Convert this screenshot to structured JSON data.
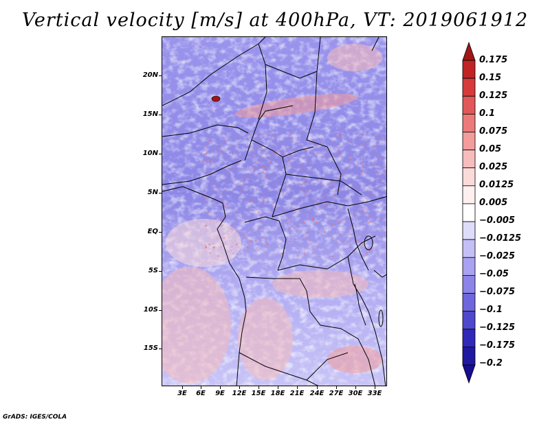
{
  "title": "Vertical velocity [m/s] at 400hPa, VT: 2019061912",
  "credit": "GrADS: IGES/COLA",
  "map": {
    "region": "Central Africa",
    "lat_range_deg": [
      -20,
      25
    ],
    "lon_range_deg": [
      0,
      35
    ],
    "lat_ticks": [
      "20N",
      "15N",
      "10N",
      "5N",
      "EQ",
      "5S",
      "10S",
      "15S"
    ],
    "lon_ticks": [
      "3E",
      "6E",
      "9E",
      "12E",
      "15E",
      "18E",
      "21E",
      "24E",
      "27E",
      "30E",
      "33E"
    ]
  },
  "colorbar": {
    "levels": [
      "0.175",
      "0.15",
      "0.125",
      "0.1",
      "0.075",
      "0.05",
      "0.025",
      "0.0125",
      "0.005",
      "−0.005",
      "−0.0125",
      "−0.025",
      "−0.05",
      "−0.075",
      "−0.1",
      "−0.125",
      "−0.175",
      "−0.2"
    ],
    "colors": [
      "#a01616",
      "#c02424",
      "#d63a3a",
      "#e25858",
      "#ec7a7a",
      "#f29c9c",
      "#f7bcbc",
      "#fbdada",
      "#fff0f0",
      "#ffffff",
      "#dedcfa",
      "#c4c0f6",
      "#a8a2f0",
      "#8c84e8",
      "#6e66dc",
      "#5048cc",
      "#3028b8",
      "#2018a0",
      "#180c90"
    ]
  }
}
